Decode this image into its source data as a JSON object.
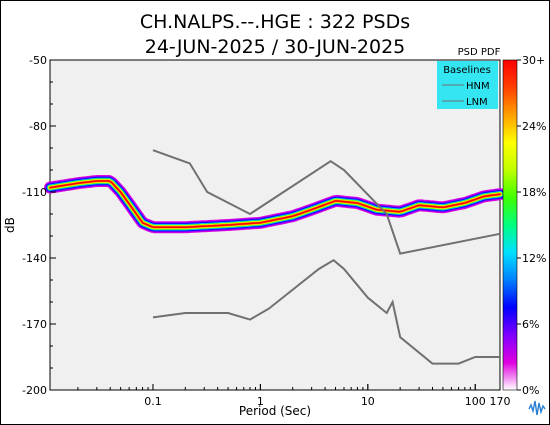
{
  "chart_data": {
    "type": "heatmap",
    "title": "CH.NALPS.--.HGE : 322 PSDs",
    "subtitle": "24-JUN-2025 / 30-JUN-2025",
    "xlabel": "Period (Sec)",
    "ylabel": "dB",
    "x_scale": "log",
    "xlim": [
      0.011,
      170
    ],
    "ylim": [
      -200,
      -50
    ],
    "x_ticks": [
      {
        "value": 0.1,
        "label": "0.1"
      },
      {
        "value": 1,
        "label": "1"
      },
      {
        "value": 10,
        "label": "10"
      },
      {
        "value": 100,
        "label": "100"
      },
      {
        "value": 170,
        "label": "170"
      }
    ],
    "y_ticks": [
      {
        "value": -50,
        "label": "-50"
      },
      {
        "value": -80,
        "label": "-80"
      },
      {
        "value": -110,
        "label": "-110"
      },
      {
        "value": -140,
        "label": "-140"
      },
      {
        "value": -170,
        "label": "-170"
      },
      {
        "value": -200,
        "label": "-200"
      }
    ],
    "colorbar": {
      "title": "PSD PDF",
      "ticks": [
        "0%",
        "6%",
        "12%",
        "18%",
        "24%",
        "30+"
      ],
      "colors": [
        "#ffffff",
        "#e000e0",
        "#8000ff",
        "#0000ff",
        "#0080ff",
        "#00e0ff",
        "#00ff80",
        "#40ff00",
        "#c0ff00",
        "#ffff00",
        "#ffa000",
        "#ff4000",
        "#ff0000"
      ]
    },
    "legend": {
      "title": "Baselines",
      "placement": "top-right",
      "background": "#33e6f2",
      "entries": [
        "HNM",
        "LNM"
      ]
    },
    "baselines": {
      "HNM": [
        [
          0.1,
          -91
        ],
        [
          0.22,
          -97
        ],
        [
          0.32,
          -110
        ],
        [
          0.8,
          -120
        ],
        [
          4.5,
          -96
        ],
        [
          6,
          -100
        ],
        [
          15,
          -120
        ],
        [
          20,
          -138
        ],
        [
          170,
          -129
        ]
      ],
      "LNM": [
        [
          0.1,
          -167
        ],
        [
          0.2,
          -165
        ],
        [
          0.5,
          -165
        ],
        [
          0.8,
          -168
        ],
        [
          1.2,
          -163
        ],
        [
          3.5,
          -145
        ],
        [
          4.8,
          -141
        ],
        [
          6,
          -145
        ],
        [
          10,
          -158
        ],
        [
          15,
          -165
        ],
        [
          17,
          -160
        ],
        [
          20,
          -176
        ],
        [
          40,
          -188
        ],
        [
          70,
          -188
        ],
        [
          100,
          -185
        ],
        [
          170,
          -185
        ]
      ]
    },
    "psd_mode": [
      [
        0.011,
        -108
      ],
      [
        0.02,
        -106
      ],
      [
        0.03,
        -105
      ],
      [
        0.04,
        -105
      ],
      [
        0.05,
        -110
      ],
      [
        0.08,
        -124
      ],
      [
        0.1,
        -126
      ],
      [
        0.2,
        -126
      ],
      [
        0.5,
        -125
      ],
      [
        1,
        -124
      ],
      [
        2,
        -121
      ],
      [
        3,
        -118
      ],
      [
        5,
        -114
      ],
      [
        8,
        -115
      ],
      [
        12,
        -118
      ],
      [
        20,
        -119
      ],
      [
        30,
        -116
      ],
      [
        50,
        -117
      ],
      [
        80,
        -115
      ],
      [
        120,
        -112
      ],
      [
        170,
        -111
      ]
    ],
    "background_color": "#f0f0f0",
    "grid": false
  }
}
